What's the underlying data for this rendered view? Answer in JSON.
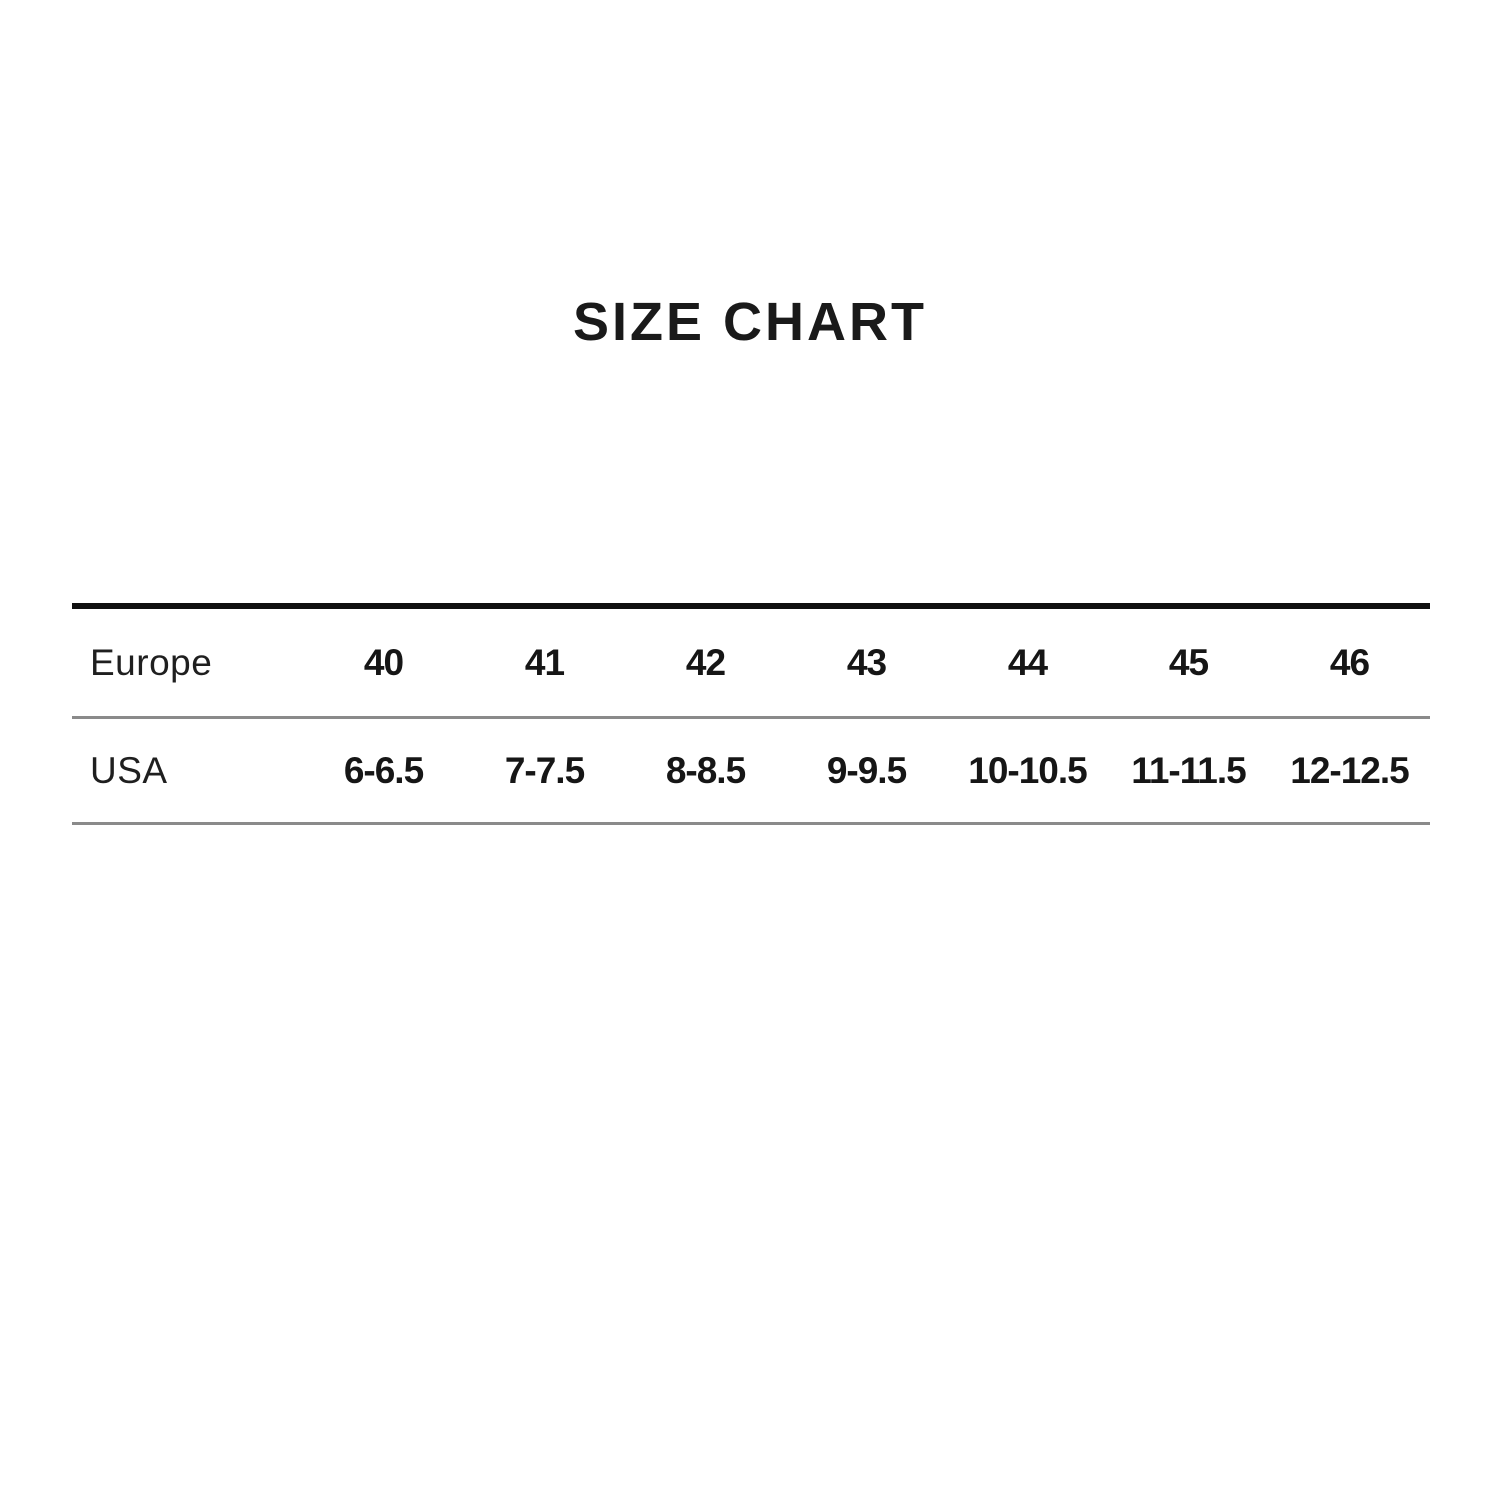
{
  "title": "SIZE CHART",
  "chart_data": {
    "type": "table",
    "title": "SIZE CHART",
    "row_headers": [
      "Europe",
      "USA"
    ],
    "rows": [
      {
        "label": "Europe",
        "values": [
          "40",
          "41",
          "42",
          "43",
          "44",
          "45",
          "46"
        ]
      },
      {
        "label": "USA",
        "values": [
          "6-6.5",
          "7-7.5",
          "8-8.5",
          "9-9.5",
          "10-10.5",
          "11-11.5",
          "12-12.5"
        ]
      }
    ],
    "layout": {
      "background": "#ffffff",
      "text_color": "#1a1a1a",
      "heavy_rule_color": "#101010",
      "light_rule_color": "#8a8a8a",
      "label_column_align": "left",
      "value_columns_align": "center",
      "grid": "horizontal-rules-only"
    }
  }
}
